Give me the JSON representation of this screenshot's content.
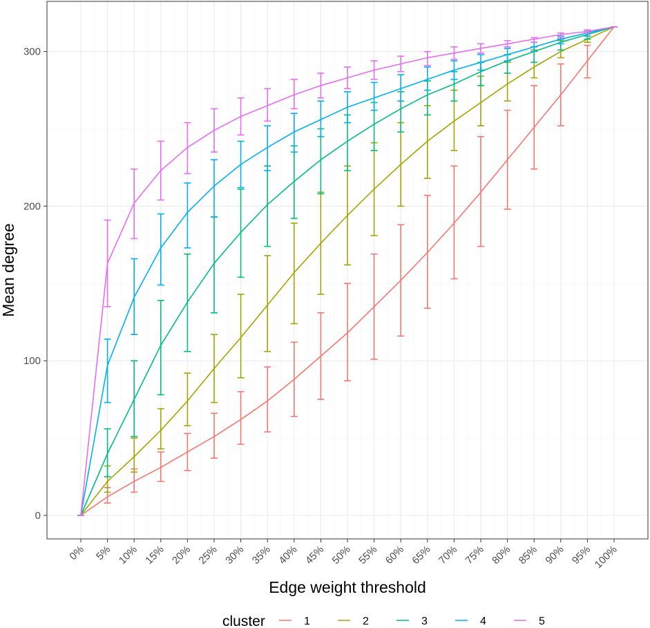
{
  "chart_data": {
    "type": "line",
    "xlabel": "Edge weight threshold",
    "ylabel": "Mean degree",
    "categories": [
      "0%",
      "5%",
      "10%",
      "15%",
      "20%",
      "25%",
      "30%",
      "35%",
      "40%",
      "45%",
      "50%",
      "55%",
      "60%",
      "65%",
      "70%",
      "75%",
      "80%",
      "85%",
      "90%",
      "95%",
      "100%"
    ],
    "ylim": [
      0,
      316
    ],
    "yticks": [
      0,
      100,
      200,
      300
    ],
    "grid": true,
    "legend": {
      "title": "cluster",
      "position": "bottom"
    },
    "series": [
      {
        "name": "1",
        "color": "#F8766D",
        "values": [
          0,
          12,
          22,
          31,
          41,
          51,
          62,
          74,
          88,
          103,
          118,
          135,
          152,
          170,
          189,
          209,
          230,
          251,
          272,
          294,
          316
        ],
        "lower": [
          0,
          8,
          15,
          22,
          29,
          37,
          46,
          54,
          64,
          75,
          87,
          101,
          116,
          134,
          153,
          174,
          198,
          224,
          252,
          283,
          316
        ],
        "upper": [
          0,
          18,
          30,
          41,
          53,
          66,
          80,
          96,
          112,
          131,
          150,
          169,
          188,
          207,
          226,
          245,
          262,
          278,
          292,
          304,
          316
        ]
      },
      {
        "name": "2",
        "color": "#A3A500",
        "values": [
          0,
          22,
          38,
          55,
          74,
          95,
          115,
          136,
          157,
          176,
          194,
          211,
          227,
          242,
          255,
          267,
          279,
          290,
          300,
          308,
          316
        ],
        "lower": [
          0,
          15,
          28,
          43,
          58,
          73,
          89,
          106,
          124,
          143,
          162,
          181,
          200,
          218,
          236,
          252,
          268,
          283,
          296,
          306,
          316
        ],
        "upper": [
          0,
          32,
          50,
          69,
          92,
          117,
          143,
          168,
          189,
          209,
          226,
          241,
          254,
          265,
          275,
          284,
          293,
          301,
          307,
          312,
          316
        ]
      },
      {
        "name": "3",
        "color": "#00BF7D",
        "values": [
          0,
          40,
          75,
          110,
          138,
          163,
          183,
          201,
          216,
          230,
          242,
          253,
          263,
          272,
          279,
          287,
          294,
          300,
          306,
          311,
          316
        ],
        "lower": [
          0,
          25,
          51,
          78,
          106,
          131,
          154,
          174,
          192,
          208,
          223,
          236,
          248,
          259,
          268,
          278,
          286,
          293,
          301,
          308,
          316
        ],
        "upper": [
          0,
          56,
          100,
          139,
          169,
          193,
          211,
          226,
          239,
          250,
          259,
          267,
          274,
          281,
          287,
          293,
          298,
          303,
          308,
          313,
          316
        ]
      },
      {
        "name": "4",
        "color": "#00B0F6",
        "values": [
          0,
          97,
          141,
          173,
          196,
          213,
          227,
          238,
          248,
          256,
          264,
          270,
          276,
          282,
          288,
          293,
          298,
          303,
          308,
          312,
          316
        ],
        "lower": [
          0,
          73,
          117,
          149,
          173,
          193,
          212,
          223,
          235,
          245,
          254,
          262,
          268,
          275,
          282,
          288,
          294,
          300,
          305,
          310,
          316
        ],
        "upper": [
          0,
          114,
          166,
          195,
          215,
          230,
          242,
          252,
          260,
          268,
          274,
          280,
          285,
          290,
          294,
          298,
          302,
          306,
          310,
          313,
          316
        ]
      },
      {
        "name": "5",
        "color": "#E76BF3",
        "values": [
          0,
          163,
          202,
          223,
          238,
          249,
          258,
          265,
          272,
          278,
          283,
          288,
          292,
          296,
          299,
          302,
          305,
          308,
          311,
          313,
          316
        ],
        "lower": [
          0,
          135,
          179,
          204,
          221,
          235,
          246,
          255,
          263,
          270,
          276,
          282,
          287,
          291,
          295,
          299,
          303,
          306,
          309,
          312,
          316
        ],
        "upper": [
          0,
          191,
          224,
          242,
          254,
          263,
          270,
          276,
          282,
          286,
          290,
          294,
          297,
          300,
          303,
          305,
          307,
          309,
          312,
          314,
          316
        ]
      }
    ]
  }
}
